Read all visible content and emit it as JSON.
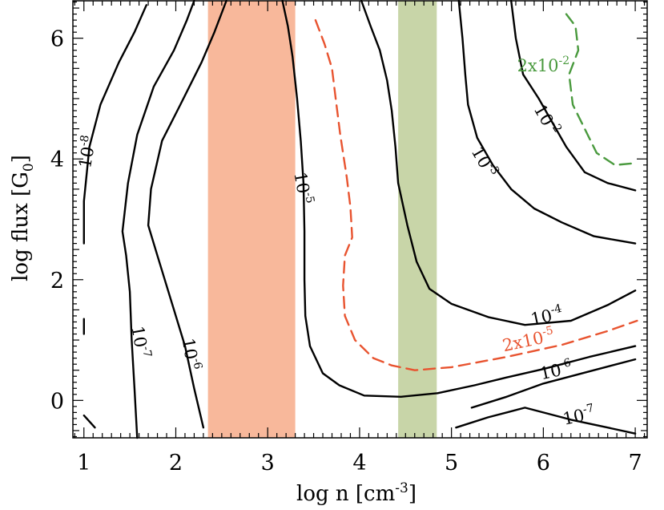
{
  "chart_data": {
    "type": "contour",
    "xlabel": "log n [cm",
    "xlabel_sup": "-3",
    "xlabel_end": "]",
    "ylabel": "log flux [G",
    "ylabel_sub": "0",
    "ylabel_end": "]",
    "xlim": [
      0.88,
      7.13
    ],
    "ylim": [
      -0.62,
      6.62
    ],
    "xticks": [
      "1",
      "2",
      "3",
      "4",
      "5",
      "6",
      "7"
    ],
    "yticks": [
      "0",
      "2",
      "4",
      "6"
    ],
    "bands": [
      {
        "name": "orange-band",
        "x0": 2.35,
        "x1": 3.3,
        "color": "#f8b89b"
      },
      {
        "name": "green-band",
        "x0": 4.42,
        "x1": 4.84,
        "color": "#c8d5a8"
      }
    ],
    "contours": [
      {
        "name": "contour-1e-8",
        "color": "#000000",
        "dashed": false,
        "points": [
          [
            1.0,
            -0.25
          ],
          [
            1.12,
            -0.45
          ]
        ]
      },
      {
        "name": "contour-1e-8-upper",
        "color": "#000000",
        "dashed": false,
        "points": [
          [
            1.0,
            1.1
          ],
          [
            1.0,
            1.35
          ]
        ]
      },
      {
        "name": "contour-1e-8-top",
        "color": "#000000",
        "dashed": false,
        "points": [
          [
            1.0,
            2.6
          ],
          [
            1.0,
            3.3
          ],
          [
            1.06,
            4.2
          ],
          [
            1.18,
            4.9
          ],
          [
            1.38,
            5.6
          ],
          [
            1.55,
            6.1
          ],
          [
            1.68,
            6.55
          ]
        ]
      },
      {
        "name": "contour-1e-7",
        "color": "#000000",
        "dashed": false,
        "points": [
          [
            1.58,
            -0.62
          ],
          [
            1.55,
            0.2
          ],
          [
            1.52,
            1.0
          ],
          [
            1.5,
            1.8
          ],
          [
            1.46,
            2.4
          ],
          [
            1.42,
            2.8
          ],
          [
            1.48,
            3.6
          ],
          [
            1.58,
            4.4
          ],
          [
            1.76,
            5.2
          ],
          [
            1.98,
            5.8
          ],
          [
            2.12,
            6.3
          ],
          [
            2.2,
            6.62
          ]
        ]
      },
      {
        "name": "contour-1e-6",
        "color": "#000000",
        "dashed": false,
        "points": [
          [
            2.3,
            -0.45
          ],
          [
            2.2,
            0.2
          ],
          [
            2.1,
            0.9
          ],
          [
            1.98,
            1.5
          ],
          [
            1.8,
            2.4
          ],
          [
            1.7,
            2.9
          ],
          [
            1.73,
            3.5
          ],
          [
            1.85,
            4.3
          ],
          [
            2.05,
            4.9
          ],
          [
            2.28,
            5.6
          ],
          [
            2.42,
            6.1
          ],
          [
            2.55,
            6.62
          ]
        ]
      },
      {
        "name": "contour-1e-5",
        "color": "#000000",
        "dashed": false,
        "points": [
          [
            3.16,
            6.62
          ],
          [
            3.22,
            6.2
          ],
          [
            3.27,
            5.7
          ],
          [
            3.32,
            5.0
          ],
          [
            3.36,
            4.3
          ],
          [
            3.39,
            3.6
          ],
          [
            3.4,
            2.8
          ],
          [
            3.4,
            2.0
          ],
          [
            3.41,
            1.4
          ],
          [
            3.46,
            0.9
          ],
          [
            3.6,
            0.45
          ],
          [
            3.78,
            0.25
          ],
          [
            4.05,
            0.08
          ],
          [
            4.45,
            0.06
          ],
          [
            4.85,
            0.12
          ],
          [
            5.25,
            0.25
          ],
          [
            5.6,
            0.38
          ],
          [
            6.0,
            0.52
          ],
          [
            6.5,
            0.72
          ],
          [
            7.0,
            0.9
          ]
        ]
      },
      {
        "name": "contour-2e-5",
        "color": "#e8532f",
        "dashed": true,
        "points": [
          [
            3.52,
            6.3
          ],
          [
            3.62,
            5.9
          ],
          [
            3.7,
            5.5
          ],
          [
            3.74,
            5.0
          ],
          [
            3.79,
            4.4
          ],
          [
            3.86,
            3.7
          ],
          [
            3.9,
            3.2
          ],
          [
            3.92,
            2.7
          ],
          [
            3.84,
            2.4
          ],
          [
            3.82,
            1.9
          ],
          [
            3.84,
            1.4
          ],
          [
            3.95,
            1.0
          ],
          [
            4.15,
            0.7
          ],
          [
            4.35,
            0.58
          ],
          [
            4.6,
            0.5
          ],
          [
            5.0,
            0.55
          ],
          [
            5.6,
            0.72
          ],
          [
            6.2,
            0.92
          ],
          [
            6.7,
            1.15
          ],
          [
            7.02,
            1.32
          ]
        ]
      },
      {
        "name": "contour-1e-4",
        "color": "#000000",
        "dashed": false,
        "points": [
          [
            4.02,
            6.62
          ],
          [
            4.12,
            6.2
          ],
          [
            4.22,
            5.8
          ],
          [
            4.3,
            5.3
          ],
          [
            4.35,
            4.8
          ],
          [
            4.39,
            4.2
          ],
          [
            4.42,
            3.6
          ],
          [
            4.52,
            2.9
          ],
          [
            4.62,
            2.3
          ],
          [
            4.76,
            1.85
          ],
          [
            5.0,
            1.6
          ],
          [
            5.4,
            1.38
          ],
          [
            5.8,
            1.25
          ],
          [
            6.3,
            1.32
          ],
          [
            6.7,
            1.58
          ],
          [
            7.0,
            1.82
          ]
        ]
      },
      {
        "name": "contour-1e-3",
        "color": "#000000",
        "dashed": false,
        "points": [
          [
            5.08,
            6.62
          ],
          [
            5.12,
            6.0
          ],
          [
            5.15,
            5.4
          ],
          [
            5.18,
            4.9
          ],
          [
            5.28,
            4.35
          ],
          [
            5.45,
            3.9
          ],
          [
            5.65,
            3.5
          ],
          [
            5.9,
            3.18
          ],
          [
            6.2,
            2.95
          ],
          [
            6.55,
            2.72
          ],
          [
            7.0,
            2.6
          ]
        ]
      },
      {
        "name": "contour-1e-2",
        "color": "#000000",
        "dashed": false,
        "points": [
          [
            5.65,
            6.62
          ],
          [
            5.7,
            6.0
          ],
          [
            5.78,
            5.4
          ],
          [
            5.95,
            5.0
          ],
          [
            6.1,
            4.6
          ],
          [
            6.25,
            4.2
          ],
          [
            6.45,
            3.78
          ],
          [
            6.7,
            3.6
          ],
          [
            7.0,
            3.48
          ]
        ]
      },
      {
        "name": "contour-2e-2",
        "color": "#4a9a3e",
        "dashed": true,
        "points": [
          [
            6.25,
            6.4
          ],
          [
            6.35,
            6.2
          ],
          [
            6.38,
            5.8
          ],
          [
            6.28,
            5.4
          ],
          [
            6.32,
            4.9
          ],
          [
            6.45,
            4.5
          ],
          [
            6.58,
            4.1
          ],
          [
            6.78,
            3.9
          ],
          [
            7.0,
            3.93
          ]
        ]
      },
      {
        "name": "contour-1e-6-right",
        "color": "#000000",
        "dashed": false,
        "points": [
          [
            5.22,
            -0.12
          ],
          [
            5.6,
            0.06
          ],
          [
            6.0,
            0.28
          ],
          [
            6.5,
            0.48
          ],
          [
            7.0,
            0.68
          ]
        ]
      },
      {
        "name": "contour-1e-7-right",
        "color": "#000000",
        "dashed": false,
        "points": [
          [
            5.05,
            -0.45
          ],
          [
            5.4,
            -0.28
          ],
          [
            5.8,
            -0.12
          ],
          [
            6.3,
            -0.32
          ],
          [
            6.7,
            -0.45
          ],
          [
            7.0,
            -0.55
          ]
        ]
      }
    ],
    "labels": [
      {
        "name": "label-1e-8",
        "text": "10",
        "sup": "-8",
        "x": 1.1,
        "y": 4.1,
        "rotate": -80,
        "color": "#000000"
      },
      {
        "name": "label-1e-7",
        "text": "10",
        "sup": "-7",
        "x": 1.55,
        "y": 0.95,
        "rotate": 80,
        "color": "#000000"
      },
      {
        "name": "label-1e-6",
        "text": "10",
        "sup": "-6",
        "x": 2.1,
        "y": 0.75,
        "rotate": 80,
        "color": "#000000"
      },
      {
        "name": "label-1e-5",
        "text": "10",
        "sup": "-5",
        "x": 3.32,
        "y": 3.5,
        "rotate": 80,
        "color": "#000000"
      },
      {
        "name": "label-2e-5",
        "text": "2x10",
        "sup": "-5",
        "x": 5.85,
        "y": 0.9,
        "rotate": -12,
        "color": "#e8532f"
      },
      {
        "name": "label-1e-4",
        "text": "10",
        "sup": "-4",
        "x": 6.05,
        "y": 1.3,
        "rotate": -12,
        "color": "#000000"
      },
      {
        "name": "label-1e-3",
        "text": "10",
        "sup": "-3",
        "x": 5.3,
        "y": 3.9,
        "rotate": 60,
        "color": "#000000"
      },
      {
        "name": "label-1e-2",
        "text": "10",
        "sup": "-2",
        "x": 5.98,
        "y": 4.6,
        "rotate": 60,
        "color": "#000000"
      },
      {
        "name": "label-2e-2",
        "text": "2x10",
        "sup": "-2",
        "x": 6.0,
        "y": 5.45,
        "rotate": 0,
        "color": "#4a9a3e"
      },
      {
        "name": "label-1e-6-right",
        "text": "10",
        "sup": "-6",
        "x": 6.15,
        "y": 0.4,
        "rotate": -12,
        "color": "#000000"
      },
      {
        "name": "label-1e-7-right",
        "text": "10",
        "sup": "-7",
        "x": 6.4,
        "y": -0.35,
        "rotate": -12,
        "color": "#000000"
      }
    ]
  }
}
